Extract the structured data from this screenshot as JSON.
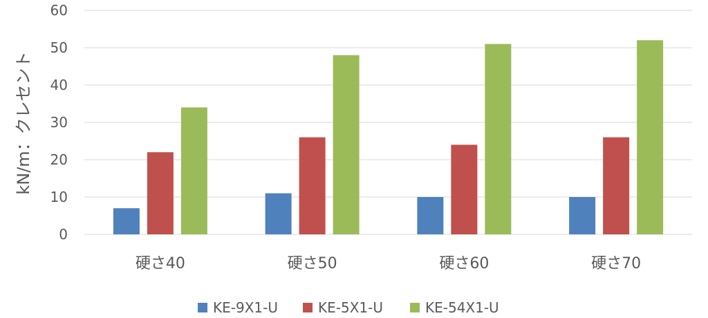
{
  "chart_data": {
    "type": "bar",
    "title": "",
    "xlabel": "",
    "ylabel": "kN/m：クレセント",
    "categories": [
      "硬さ40",
      "硬さ50",
      "硬さ60",
      "硬さ70"
    ],
    "series": [
      {
        "name": "KE-9X1-U",
        "values": [
          7,
          11,
          10,
          10
        ],
        "color": "#4f81bd"
      },
      {
        "name": "KE-5X1-U",
        "values": [
          22,
          26,
          24,
          26
        ],
        "color": "#c0504d"
      },
      {
        "name": "KE-54X1-U",
        "values": [
          34,
          48,
          51,
          52
        ],
        "color": "#9bbb59"
      }
    ],
    "ylim": [
      0,
      60
    ],
    "yticks": [
      0,
      10,
      20,
      30,
      40,
      50,
      60
    ],
    "grid": true,
    "legend_position": "bottom"
  }
}
